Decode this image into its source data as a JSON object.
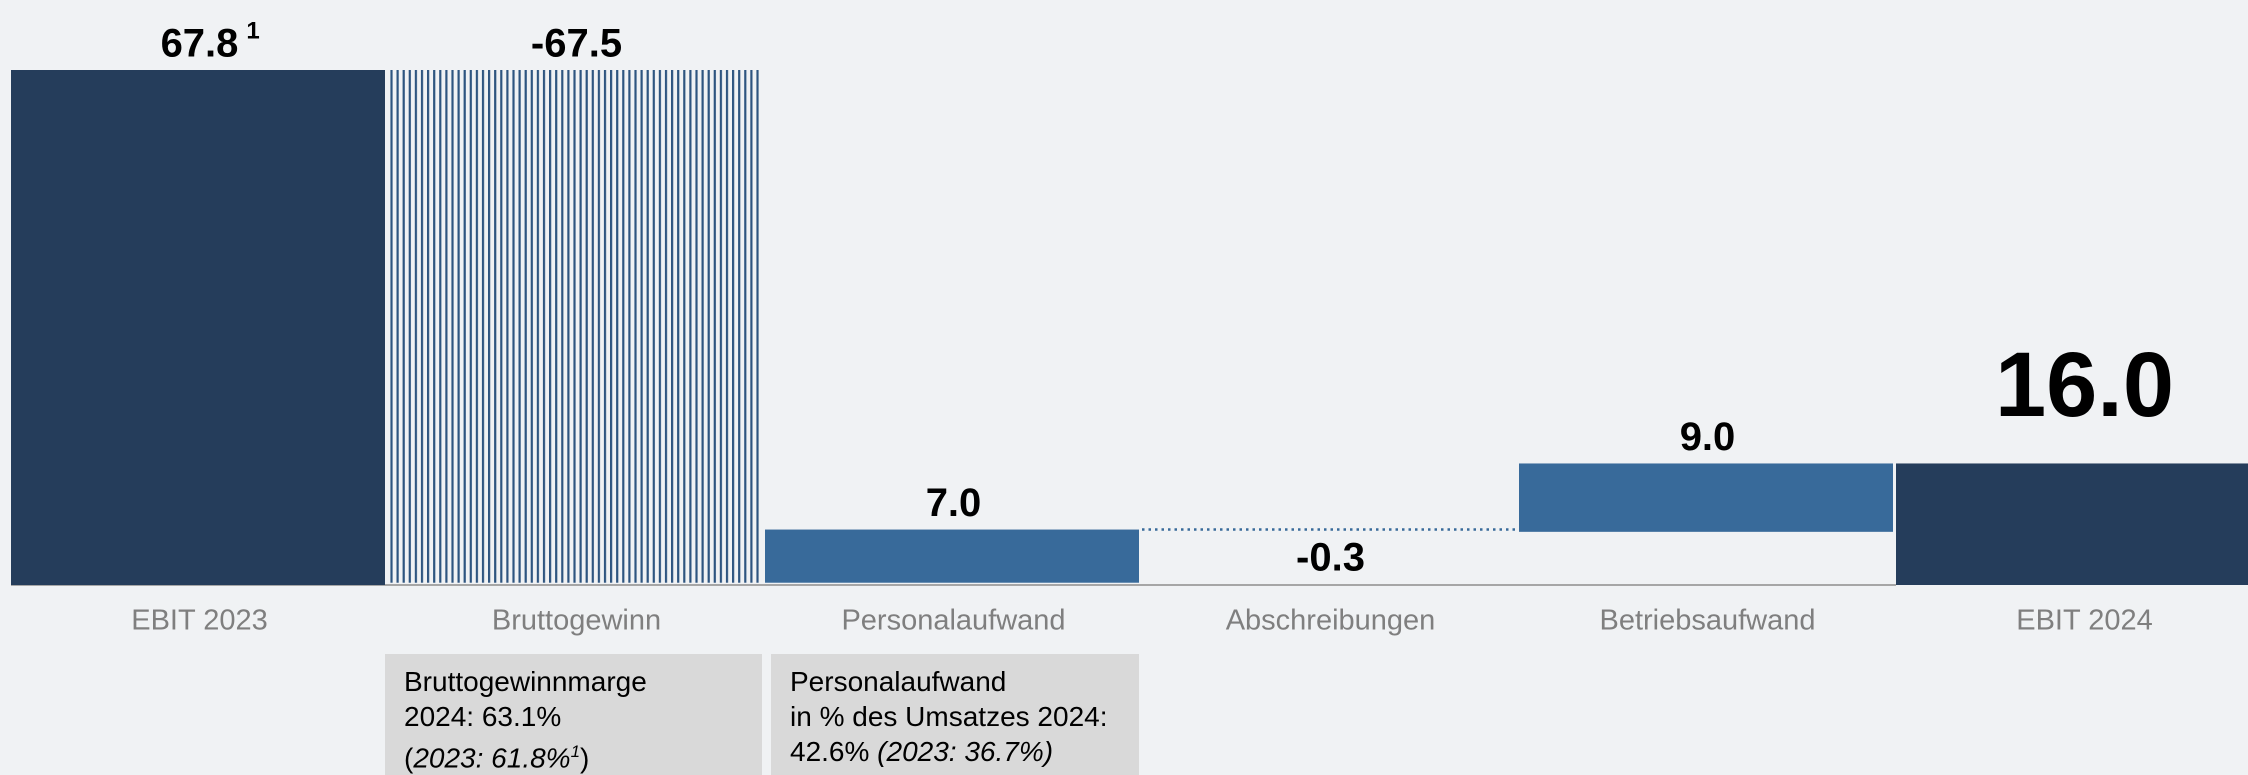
{
  "chart_data": {
    "type": "waterfall",
    "categories": [
      "EBIT 2023",
      "Bruttogewinn",
      "Personalaufwand",
      "Abschreibungen",
      "Betriebsaufwand",
      "EBIT 2024"
    ],
    "values": [
      67.8,
      -67.5,
      7.0,
      -0.3,
      9.0,
      16.0
    ],
    "value_labels": [
      "67.8",
      "-67.5",
      "7.0",
      "-0.3",
      "9.0",
      "16.0"
    ],
    "first_value_note": "1",
    "bar_kinds": [
      "total",
      "delta",
      "delta",
      "delta",
      "delta",
      "total"
    ],
    "bar_styles": [
      "solid",
      "striped",
      "solid",
      "dotted",
      "solid",
      "solid"
    ],
    "colors": [
      "#253d5b",
      "#2e5580",
      "#386a9a",
      "#386a9a",
      "#386a9a",
      "#253d5b"
    ],
    "notes": [
      {
        "category": 1,
        "lines": [
          [
            {
              "text": "Bruttogewinnmarge",
              "style": "normal"
            }
          ],
          [
            {
              "text": "2024: 63.1%",
              "style": "normal"
            }
          ],
          [
            {
              "text": "(",
              "style": "normal"
            },
            {
              "text": "2023: 61.8%",
              "style": "italic"
            },
            {
              "text": "1",
              "style": "sup-italic"
            },
            {
              "text": ")",
              "style": "normal"
            }
          ]
        ]
      },
      {
        "category": 2,
        "lines": [
          [
            {
              "text": "Personalaufwand",
              "style": "normal"
            }
          ],
          [
            {
              "text": "in % des Umsatzes 2024:",
              "style": "normal"
            }
          ],
          [
            {
              "text": "42.6% ",
              "style": "normal"
            },
            {
              "text": "(2023: 36.7%)",
              "style": "italic"
            }
          ]
        ]
      }
    ]
  }
}
